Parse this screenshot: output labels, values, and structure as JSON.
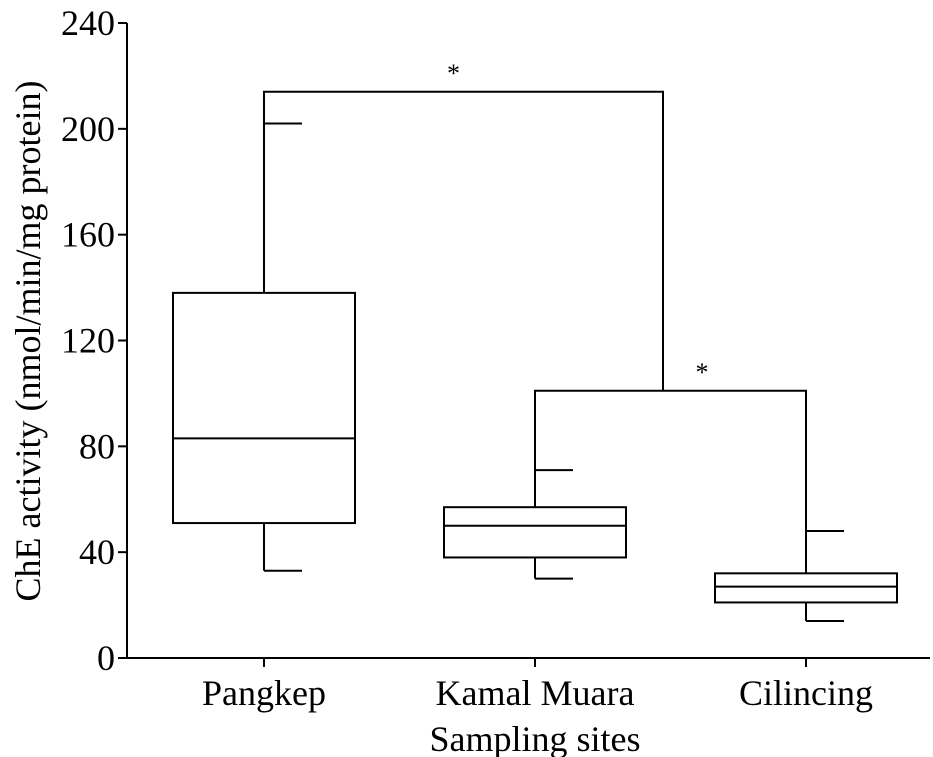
{
  "chart_data": {
    "type": "box",
    "title": "",
    "xlabel": "Sampling sites",
    "ylabel": "ChE activity (nmol/min/mg protein)",
    "ylim": [
      0,
      240
    ],
    "yticks": [
      0,
      40,
      80,
      120,
      160,
      200,
      240
    ],
    "yticks_text": [
      "0",
      "40",
      "80",
      "120",
      "160",
      "200",
      "240"
    ],
    "grid": false,
    "categories": [
      "Pangkep",
      "Kamal Muara",
      "Cilincing"
    ],
    "boxes": [
      {
        "name": "Pangkep",
        "min": 33,
        "q1": 51,
        "median": 83,
        "q3": 138,
        "max": 202
      },
      {
        "name": "Kamal Muara",
        "min": 30,
        "q1": 38,
        "median": 50,
        "q3": 57,
        "max": 71
      },
      {
        "name": "Cilincing",
        "min": 14,
        "q1": 21,
        "median": 27,
        "q3": 32,
        "max": 48
      }
    ],
    "significance": [
      {
        "from": "Pangkep",
        "to": "Kamal Muara + Cilincing",
        "y": 214,
        "label": "*"
      },
      {
        "from": "Kamal Muara",
        "to": "Cilincing",
        "y": 101,
        "label": "*"
      }
    ]
  }
}
